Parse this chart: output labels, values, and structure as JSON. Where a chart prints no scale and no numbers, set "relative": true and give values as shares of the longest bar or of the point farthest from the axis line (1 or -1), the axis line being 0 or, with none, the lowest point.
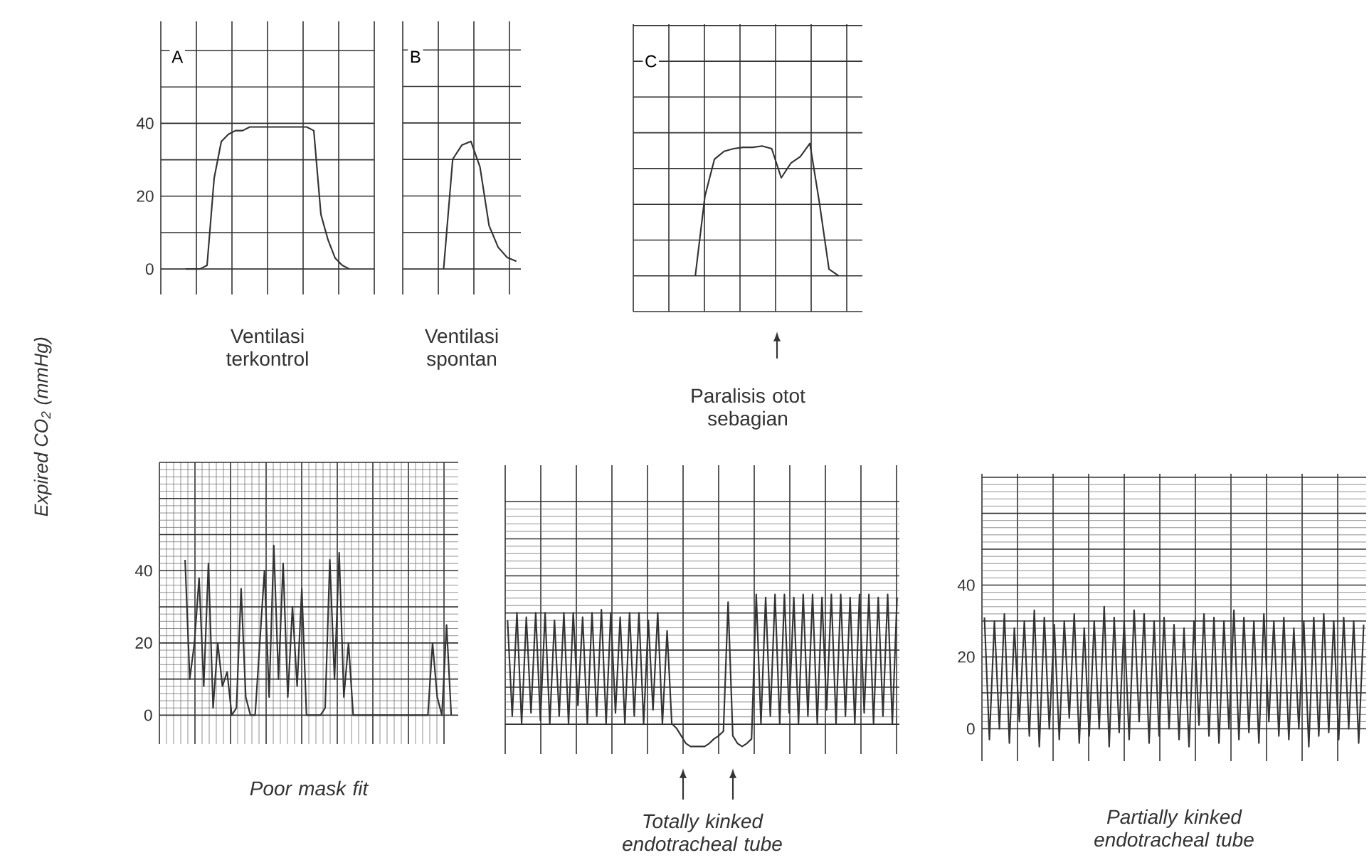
{
  "chart_data": [
    {
      "type": "line",
      "title": "A",
      "xlabel": "Ventilasi terkontrol",
      "ylabel": "Expired CO$_{2}$ (mmHg)",
      "color": "#333333",
      "grid": true,
      "ylim": [
        -7,
        68
      ],
      "yticks": [
        0,
        20,
        40
      ],
      "categories": [
        null,
        null,
        null,
        null,
        null,
        null,
        null,
        null,
        null,
        null,
        null,
        null,
        null,
        null,
        null,
        null,
        null,
        null,
        null,
        null,
        null,
        null,
        null,
        null,
        null,
        null,
        null,
        null,
        null,
        null
      ],
      "values": [
        null,
        null,
        null,
        0,
        0,
        0,
        1,
        25,
        35,
        37,
        38,
        38,
        39,
        39,
        39,
        39,
        39,
        39,
        39,
        39,
        39,
        38,
        15,
        8,
        3,
        1,
        0,
        null,
        null,
        null
      ]
    },
    {
      "type": "line",
      "title": "B",
      "xlabel": "Ventilasi spontan",
      "color": "#333333",
      "grid": true,
      "relative": true,
      "categories": [
        null,
        null,
        null,
        null,
        null,
        null,
        null,
        null,
        null,
        null,
        null,
        null,
        null
      ],
      "values": [
        null,
        null,
        null,
        null,
        0,
        0.86,
        0.97,
        1,
        0.8,
        0.34,
        0.17,
        0.09,
        0.06
      ]
    },
    {
      "type": "line",
      "title": "C",
      "xlabel": "Paralisis otot sebagian",
      "color": "#333333",
      "grid": true,
      "relative": true,
      "categories": [
        null,
        null,
        null,
        null,
        null,
        null,
        null,
        null,
        null,
        null,
        null,
        null,
        null,
        null,
        null,
        null,
        null,
        null,
        null,
        null,
        null,
        null,
        null,
        null
      ],
      "values": [
        null,
        null,
        null,
        null,
        null,
        null,
        0,
        0.6,
        0.88,
        0.94,
        0.96,
        0.97,
        0.97,
        0.98,
        0.96,
        0.74,
        0.85,
        0.9,
        1,
        0.55,
        0.05,
        0,
        null,
        null
      ]
    },
    {
      "type": "line",
      "xlabel": "Poor mask fit",
      "color": "#333333",
      "grid": true,
      "ylim": [
        -8,
        70
      ],
      "yticks": [
        0,
        20,
        40
      ],
      "categories": [
        null,
        null,
        null,
        null,
        null,
        null,
        null,
        null,
        null,
        null,
        null,
        null,
        null,
        null,
        null,
        null,
        null,
        null,
        null,
        null,
        null,
        null,
        null,
        null,
        null,
        null,
        null,
        null,
        null,
        null,
        null,
        null,
        null,
        null,
        null,
        null,
        null,
        null,
        null,
        null,
        null,
        null,
        null,
        null,
        null,
        null,
        null,
        null,
        null,
        null,
        null,
        null,
        null,
        null,
        null,
        null,
        null,
        null,
        null,
        null,
        null,
        null,
        null,
        null
      ],
      "values": [
        null,
        null,
        null,
        null,
        null,
        43,
        10,
        20,
        38,
        8,
        42,
        2,
        20,
        8,
        12,
        0,
        2,
        35,
        5,
        0,
        0,
        20,
        40,
        5,
        47,
        10,
        42,
        5,
        30,
        8,
        35,
        0,
        0,
        0,
        0,
        2,
        43,
        10,
        45,
        5,
        20,
        0,
        0,
        0,
        0,
        0,
        0,
        0,
        0,
        0,
        0,
        0,
        0,
        0,
        0,
        0,
        0,
        0,
        20,
        5,
        0,
        25,
        0,
        null
      ]
    },
    {
      "type": "line",
      "xlabel": "Totally kinked endotracheal tube",
      "color": "#333333",
      "grid": true,
      "relative": true,
      "categories": [
        null,
        null,
        null,
        null,
        null,
        null,
        null,
        null,
        null,
        null,
        null,
        null,
        null,
        null,
        null,
        null,
        null,
        null,
        null,
        null,
        null,
        null,
        null,
        null,
        null,
        null,
        null,
        null,
        null,
        null,
        null,
        null,
        null,
        null,
        null,
        null,
        null,
        null,
        null,
        null,
        null,
        null,
        null,
        null,
        null,
        null,
        null,
        null,
        null,
        null,
        null,
        null,
        null,
        null,
        null,
        null,
        null,
        null,
        null,
        null,
        null,
        null,
        null,
        null,
        null,
        null,
        null,
        null,
        null,
        null,
        null,
        null,
        null,
        null,
        null,
        null,
        null,
        null,
        null,
        null,
        null,
        null,
        null,
        null
      ],
      "values": [
        0.83,
        0.2,
        0.88,
        0.15,
        0.85,
        0.22,
        0.88,
        0.17,
        0.88,
        0.15,
        0.83,
        0.2,
        0.88,
        0.15,
        0.88,
        0.27,
        0.85,
        0.15,
        0.88,
        0.2,
        0.9,
        0.15,
        0.88,
        0.22,
        0.85,
        0.15,
        0.88,
        0.2,
        0.88,
        0.15,
        0.83,
        0.24,
        0.88,
        0.15,
        0.76,
        0.15,
        0.12,
        0.07,
        0.02,
        0,
        0,
        0,
        0,
        0.02,
        0.05,
        0.07,
        0.1,
        0.95,
        0.07,
        0.02,
        0,
        0.02,
        0.05,
        1,
        0.15,
        0.98,
        0.2,
        1,
        0.15,
        1,
        0.22,
        0.98,
        0.15,
        1,
        0.2,
        1,
        0.15,
        0.98,
        0.24,
        1,
        0.15,
        1,
        0.2,
        0.98,
        0.15,
        1,
        0.22,
        1,
        0.15,
        0.98,
        0.2,
        1,
        0.15,
        0.98
      ]
    },
    {
      "type": "line",
      "xlabel": "Partially kinked endotracheal tube",
      "color": "#333333",
      "grid": true,
      "ylim": [
        -9,
        71
      ],
      "yticks": [
        0,
        20,
        40
      ],
      "categories": [
        null,
        null,
        null,
        null,
        null,
        null,
        null,
        null,
        null,
        null,
        null,
        null,
        null,
        null,
        null,
        null,
        null,
        null,
        null,
        null,
        null,
        null,
        null,
        null,
        null,
        null,
        null,
        null,
        null,
        null,
        null,
        null,
        null,
        null,
        null,
        null,
        null,
        null,
        null,
        null,
        null,
        null,
        null,
        null,
        null,
        null,
        null,
        null,
        null,
        null,
        null,
        null,
        null,
        null,
        null,
        null,
        null,
        null,
        null,
        null,
        null,
        null,
        null,
        null,
        null,
        null,
        null,
        null,
        null,
        null,
        null,
        null,
        null,
        null,
        null,
        null,
        null
      ],
      "values": [
        31,
        -3,
        30,
        0,
        32,
        -4,
        28,
        2,
        30,
        -2,
        33,
        -5,
        31,
        0,
        29,
        -3,
        30,
        3,
        32,
        -4,
        28,
        -2,
        30,
        0,
        34,
        -5,
        31,
        -1,
        30,
        -3,
        33,
        2,
        32,
        -4,
        30,
        -2,
        31,
        0,
        29,
        -3,
        28,
        -5,
        30,
        1,
        32,
        -2,
        31,
        -4,
        30,
        0,
        33,
        -3,
        31,
        -1,
        30,
        -4,
        32,
        2,
        30,
        -2,
        31,
        -3,
        28,
        0,
        30,
        -5,
        31,
        -2,
        32,
        -1,
        30,
        -3,
        31,
        0,
        30,
        -4,
        29
      ]
    }
  ]
}
